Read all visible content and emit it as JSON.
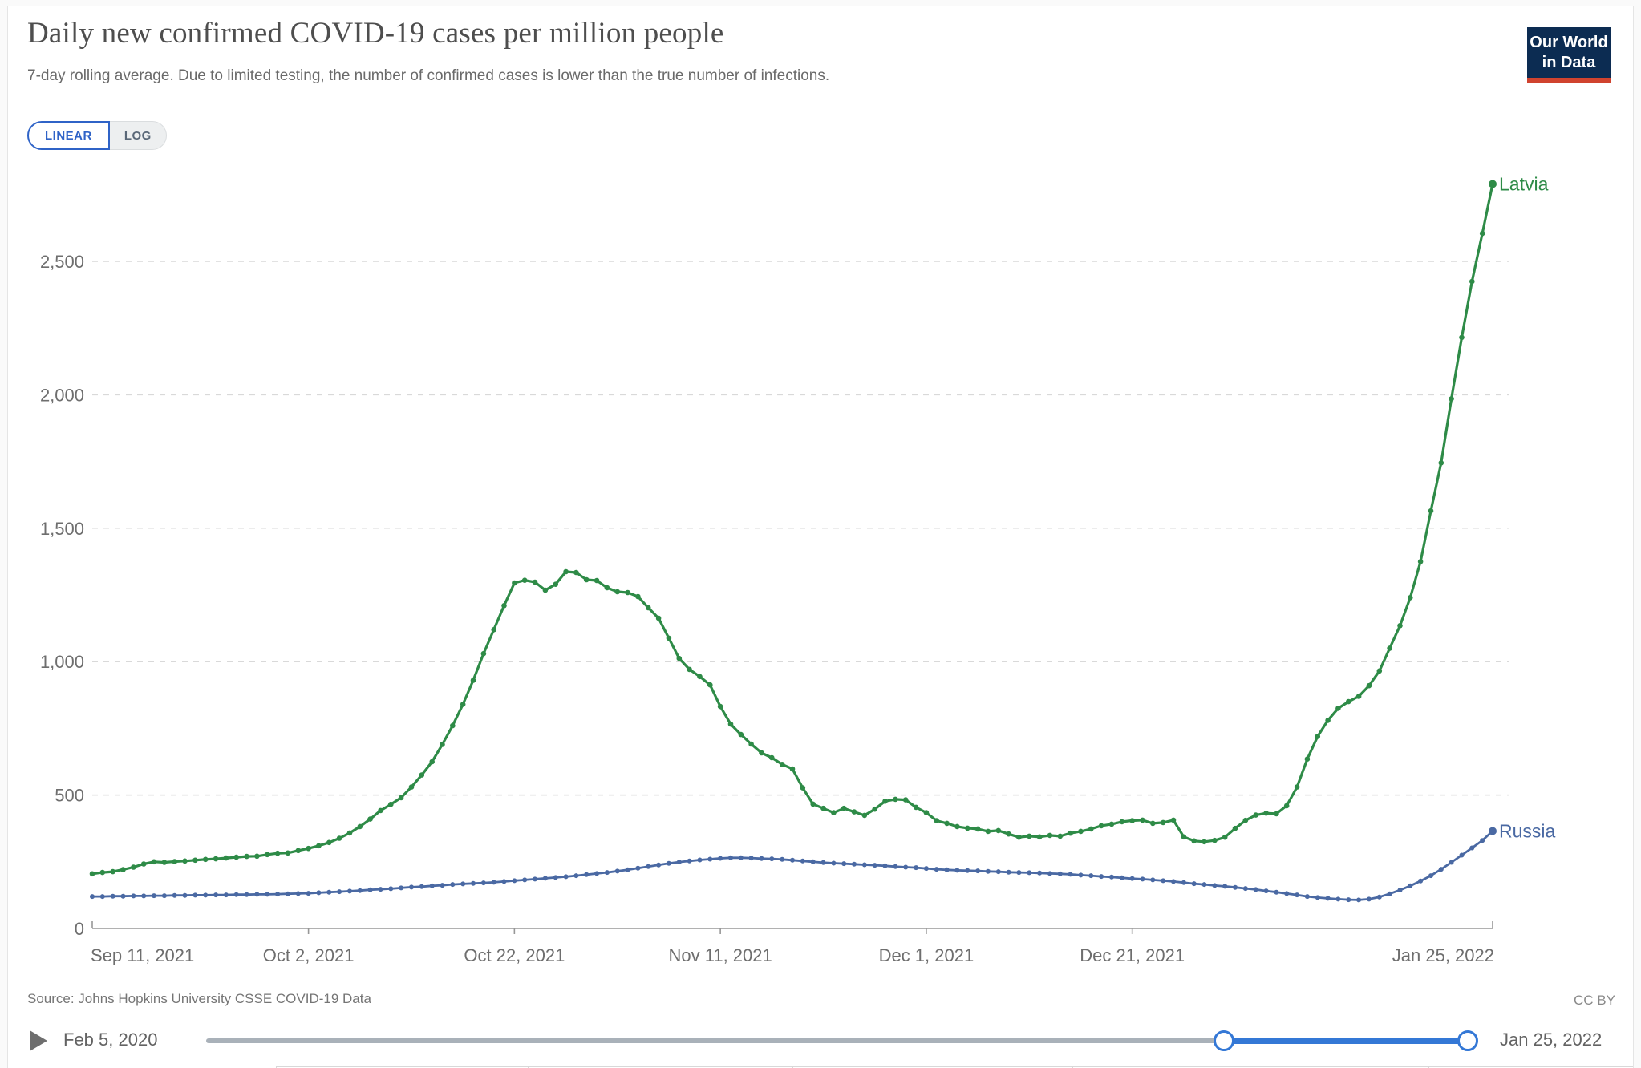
{
  "header": {
    "title": "Daily new confirmed COVID-19 cases per million people",
    "subtitle": "7-day rolling average. Due to limited testing, the number of confirmed cases is lower than the true number of infections."
  },
  "controls": {
    "scale_toggle": {
      "linear_label": "LINEAR",
      "log_label": "LOG",
      "active": "LINEAR"
    }
  },
  "logo": {
    "line1": "Our World",
    "line2": "in Data",
    "navy": "#0c2c52",
    "red": "#d0432f"
  },
  "footer": {
    "source": "Source: Johns Hopkins University CSSE COVID-19 Data",
    "license": "CC BY"
  },
  "timeline": {
    "start_label": "Feb 5, 2020",
    "end_label": "Jan 25, 2022",
    "selection_start_fraction": 0.807,
    "selection_end_fraction": 1.0
  },
  "chart_data": {
    "type": "line",
    "title": "Daily new confirmed COVID-19 cases per million people",
    "xlabel": "",
    "ylabel": "",
    "x_start_date": "Sep 11, 2021",
    "x_end_date": "Jan 25, 2022",
    "x_days_total": 136,
    "grid": true,
    "ylim": [
      0,
      2800
    ],
    "y_ticks": [
      {
        "label": "0",
        "value": 0
      },
      {
        "label": "500",
        "value": 500
      },
      {
        "label": "1,000",
        "value": 1000
      },
      {
        "label": "1,500",
        "value": 1500
      },
      {
        "label": "2,000",
        "value": 2000
      },
      {
        "label": "2,500",
        "value": 2500
      }
    ],
    "x_ticks": [
      {
        "label": "Sep 11, 2021",
        "day": 0
      },
      {
        "label": "Oct 2, 2021",
        "day": 21
      },
      {
        "label": "Oct 22, 2021",
        "day": 41
      },
      {
        "label": "Nov 11, 2021",
        "day": 61
      },
      {
        "label": "Dec 1, 2021",
        "day": 81
      },
      {
        "label": "Dec 21, 2021",
        "day": 101
      },
      {
        "label": "Jan 25, 2022",
        "day": 136
      }
    ],
    "series": [
      {
        "name": "Latvia",
        "color": "#2e8b47",
        "values": [
          205,
          210,
          213,
          221,
          230,
          242,
          250,
          248,
          251,
          253,
          256,
          259,
          261,
          264,
          267,
          270,
          271,
          277,
          282,
          283,
          292,
          300,
          310,
          322,
          338,
          358,
          382,
          410,
          442,
          465,
          490,
          530,
          575,
          625,
          690,
          760,
          840,
          930,
          1030,
          1120,
          1210,
          1295,
          1305,
          1298,
          1268,
          1290,
          1337,
          1334,
          1307,
          1304,
          1277,
          1262,
          1259,
          1244,
          1202,
          1163,
          1088,
          1012,
          971,
          944,
          913,
          832,
          766,
          727,
          691,
          658,
          640,
          615,
          598,
          527,
          466,
          450,
          434,
          450,
          437,
          424,
          447,
          477,
          484,
          482,
          454,
          434,
          404,
          394,
          382,
          376,
          373,
          364,
          367,
          354,
          342,
          346,
          343,
          349,
          346,
          357,
          364,
          373,
          385,
          391,
          400,
          404,
          406,
          394,
          397,
          406,
          343,
          328,
          325,
          330,
          342,
          375,
          405,
          425,
          432,
          430,
          460,
          530,
          635,
          720,
          780,
          825,
          850,
          870,
          910,
          965,
          1050,
          1135,
          1240,
          1375,
          1565,
          1745,
          1985,
          2215,
          2425,
          2605,
          2790
        ]
      },
      {
        "name": "Russia",
        "color": "#4a69a3",
        "values": [
          120,
          120,
          121,
          121,
          122,
          122,
          123,
          123,
          124,
          124,
          125,
          125,
          126,
          126,
          127,
          127,
          128,
          128,
          129,
          130,
          131,
          132,
          134,
          136,
          138,
          140,
          142,
          145,
          147,
          149,
          152,
          155,
          157,
          160,
          162,
          165,
          167,
          169,
          171,
          173,
          176,
          179,
          182,
          185,
          188,
          191,
          194,
          198,
          202,
          206,
          210,
          215,
          220,
          226,
          232,
          238,
          244,
          249,
          253,
          257,
          260,
          263,
          265,
          265,
          264,
          262,
          261,
          259,
          256,
          253,
          250,
          247,
          245,
          243,
          241,
          239,
          237,
          235,
          232,
          230,
          228,
          225,
          222,
          220,
          218,
          217,
          216,
          214,
          213,
          211,
          210,
          209,
          208,
          206,
          205,
          203,
          200,
          198,
          195,
          193,
          190,
          187,
          185,
          182,
          179,
          176,
          172,
          168,
          165,
          161,
          158,
          154,
          150,
          146,
          141,
          136,
          131,
          126,
          120,
          116,
          113,
          110,
          108,
          107,
          110,
          118,
          130,
          144,
          160,
          178,
          198,
          222,
          248,
          275,
          302,
          330,
          365
        ]
      }
    ],
    "annotations": [
      "Latvia",
      "Russia"
    ],
    "legend_position": "end-of-line-labels"
  }
}
